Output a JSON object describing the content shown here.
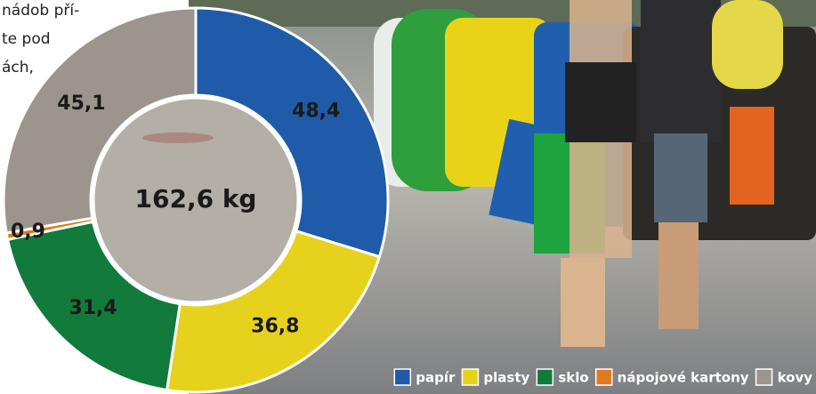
{
  "annotation_lines": [
    "nádob pří-",
    "te pod",
    "ách,"
  ],
  "chart_data": {
    "type": "donut",
    "center_label": "162,6 kg",
    "categories": [
      "papír",
      "plasty",
      "sklo",
      "nápojové kartony",
      "kovy"
    ],
    "values": [
      48.4,
      36.8,
      31.4,
      0.9,
      45.1
    ],
    "value_labels": [
      "48,4",
      "36,8",
      "31,4",
      "0,9",
      "45,1"
    ],
    "colors": [
      "#1f5ba8",
      "#e6d21c",
      "#127a3a",
      "#e07a1e",
      "#9c958d"
    ],
    "legend": "bottom-right"
  }
}
